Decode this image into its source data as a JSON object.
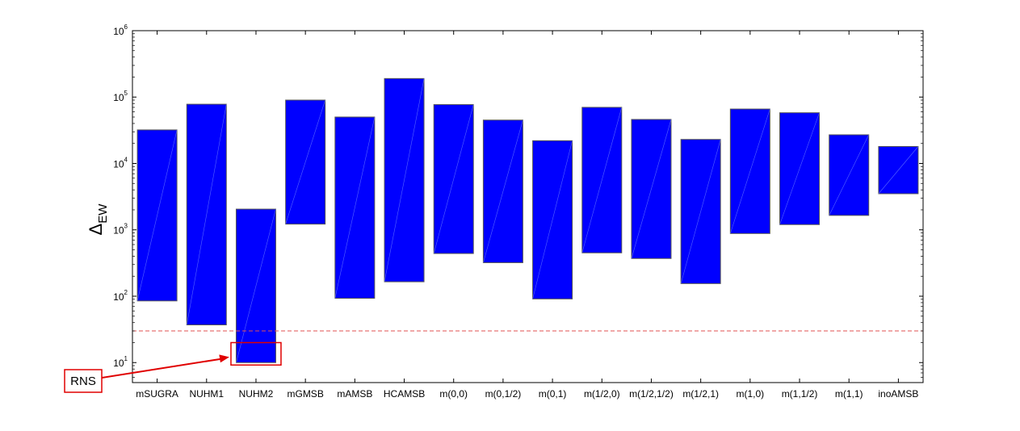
{
  "chart_data": {
    "type": "bar",
    "subtype": "floating-range",
    "title": "",
    "xlabel": "",
    "ylabel": "Δ",
    "ylabel_subscript": "EW",
    "yscale": "log",
    "ylim": [
      5,
      1000000
    ],
    "ytick_base": "10",
    "yticks": [
      {
        "value": 10,
        "exp": "1"
      },
      {
        "value": 100,
        "exp": "2"
      },
      {
        "value": 1000,
        "exp": "3"
      },
      {
        "value": 10000,
        "exp": "4"
      },
      {
        "value": 100000,
        "exp": "5"
      },
      {
        "value": 1000000,
        "exp": "6"
      }
    ],
    "grid": false,
    "bar_color": "#0000ff",
    "reference_line": {
      "value": 30,
      "color": "#e05050",
      "style": "dashed"
    },
    "categories": [
      "mSUGRA",
      "NUHM1",
      "NUHM2",
      "mGMSB",
      "mAMSB",
      "HCAMSB",
      "m(0,0)",
      "m(0,1/2)",
      "m(0,1)",
      "m(1/2,0)",
      "m(1/2,1/2)",
      "m(1/2,1)",
      "m(1,0)",
      "m(1,1/2)",
      "m(1,1)",
      "inoAMSB"
    ],
    "ranges": [
      {
        "low": 85,
        "high": 32000
      },
      {
        "low": 37,
        "high": 78000
      },
      {
        "low": 10,
        "high": 2050
      },
      {
        "low": 1220,
        "high": 90000
      },
      {
        "low": 93,
        "high": 50000
      },
      {
        "low": 165,
        "high": 190000
      },
      {
        "low": 440,
        "high": 77000
      },
      {
        "low": 320,
        "high": 45000
      },
      {
        "low": 91,
        "high": 22000
      },
      {
        "low": 450,
        "high": 70000
      },
      {
        "low": 370,
        "high": 46000
      },
      {
        "low": 155,
        "high": 23000
      },
      {
        "low": 880,
        "high": 66000
      },
      {
        "low": 1200,
        "high": 58000
      },
      {
        "low": 1650,
        "high": 27000
      },
      {
        "low": 3500,
        "high": 18000
      }
    ],
    "annotation": {
      "text": "RNS",
      "color": "#e00000",
      "target_category": "NUHM2",
      "box_low": 10,
      "box_high": 20
    }
  }
}
